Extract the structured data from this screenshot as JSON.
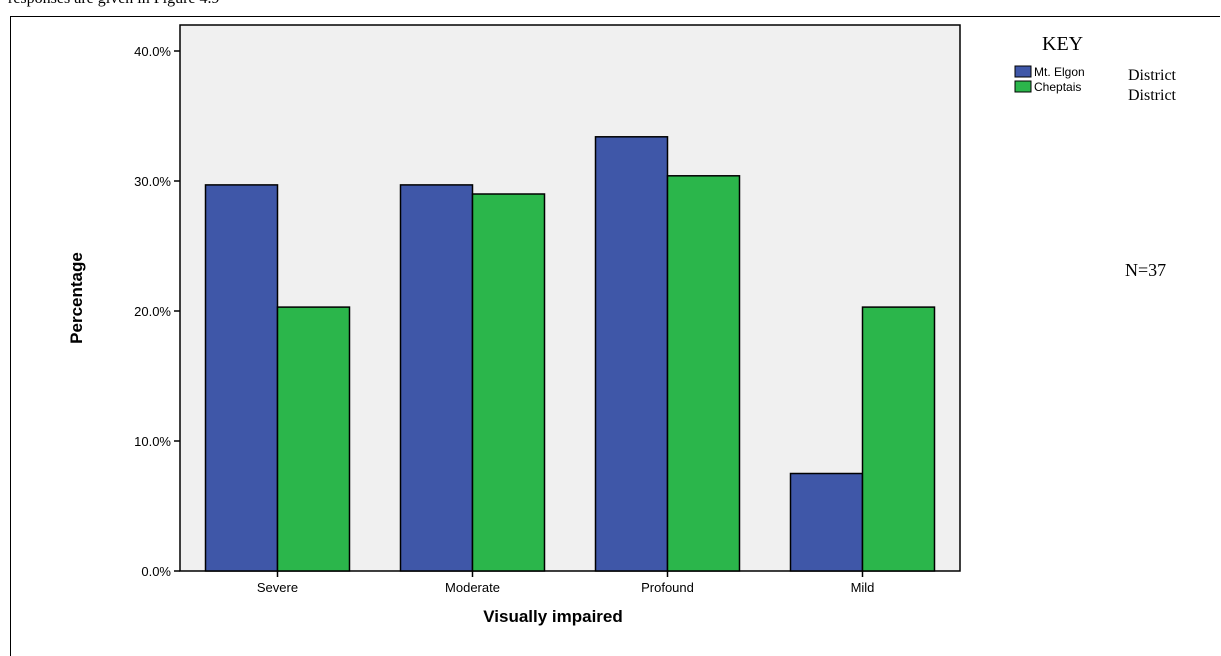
{
  "caption": "responses are given in Figure 4.9",
  "chart_data": {
    "type": "bar",
    "categories": [
      "Severe",
      "Moderate",
      "Profound",
      "Mild"
    ],
    "series": [
      {
        "name": "Mt. Elgon District",
        "values": [
          29.7,
          29.7,
          33.4,
          7.5
        ],
        "color": "#3f57a8"
      },
      {
        "name": "Cheptais District",
        "values": [
          20.3,
          29.0,
          30.4,
          20.3
        ],
        "color": "#2bb64b"
      }
    ],
    "ylim": [
      0,
      42
    ],
    "yticks": [
      "0.0%",
      "10.0%",
      "20.0%",
      "30.0%",
      "40.0%"
    ],
    "ytick_values": [
      0,
      10,
      20,
      30,
      40
    ],
    "xlabel": "Visually impaired",
    "ylabel": "Percentage",
    "legend_title": "KEY",
    "legend": [
      {
        "label": "Mt. Elgon",
        "suffix": "District"
      },
      {
        "label": "Cheptais",
        "suffix": "District"
      }
    ],
    "annotation": "N=37",
    "plot_background": "#f0f0f0",
    "grid": false
  }
}
